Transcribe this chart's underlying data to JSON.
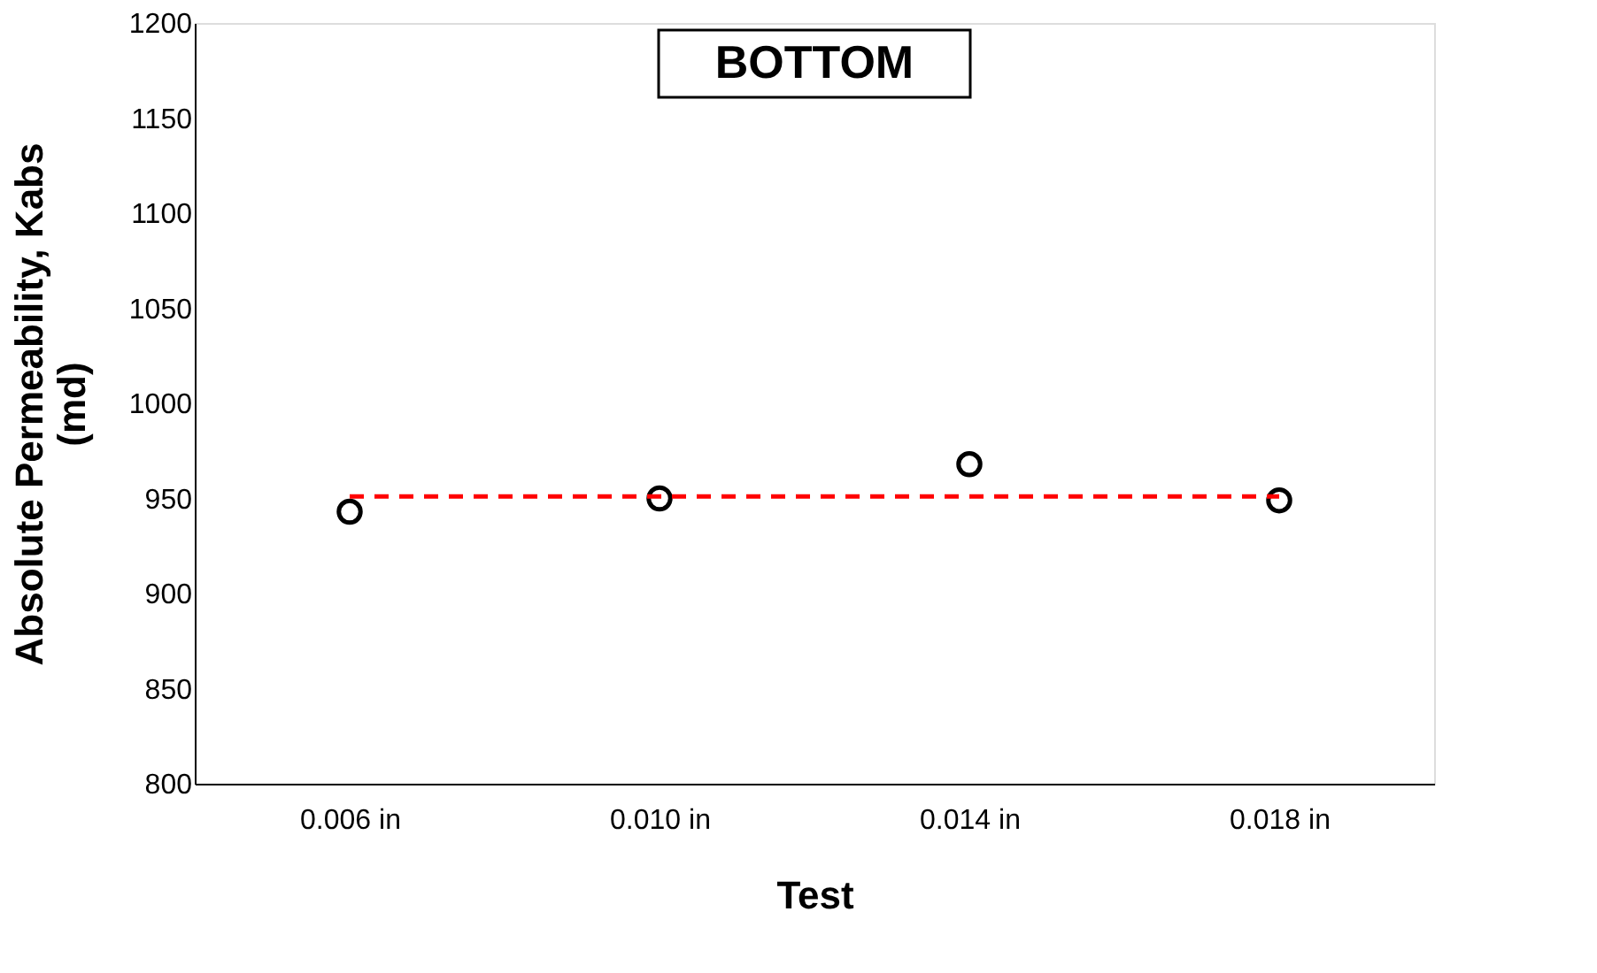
{
  "chart_data": {
    "type": "scatter",
    "title": "BOTTOM",
    "xlabel": "Test",
    "ylabel": "Absolute Permeability, Kabs (md)",
    "categories": [
      "0.006 in",
      "0.010 in",
      "0.014 in",
      "0.018 in"
    ],
    "series": [
      {
        "color": "#000000",
        "marker": "circle",
        "values": [
          943,
          950,
          968,
          949
        ]
      },
      {
        "type": "line",
        "color": "#ff0000",
        "line_style": "dashed",
        "marker": "none",
        "values": [
          951,
          951,
          951,
          951
        ]
      }
    ],
    "ylim": [
      800,
      1200
    ],
    "yticks": [
      800,
      850,
      900,
      950,
      1000,
      1050,
      1100,
      1150,
      1200
    ],
    "grid": false
  }
}
